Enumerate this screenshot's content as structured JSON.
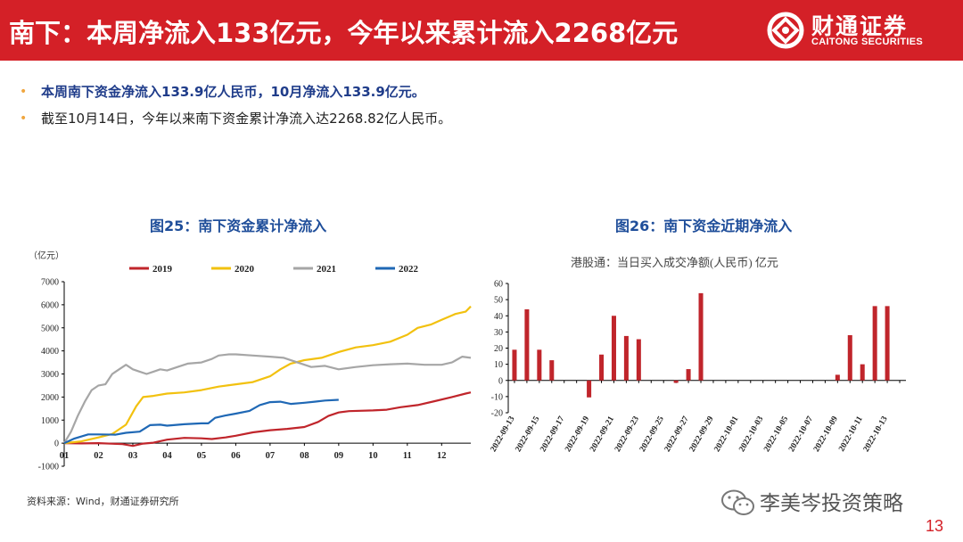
{
  "header": {
    "title": "南下：本周净流入133亿元，今年以来累计流入2268亿元",
    "logo_cn": "财通证券",
    "logo_en": "CAITONG SECURITIES"
  },
  "bullets": [
    {
      "text": "本周南下资金净流入133.9亿人民币，10月净流入133.9亿元。",
      "style": "strong"
    },
    {
      "text": "截至10月14日，今年以来南下资金累计净流入达2268.82亿人民币。",
      "style": "normal"
    }
  ],
  "source": "资料来源：Wind，财通证券研究所",
  "watermark": "李美岑投资策略",
  "page_number": "13",
  "colors": {
    "brand": "#d42027",
    "title_blue": "#1f4e9a",
    "bar_red": "#c0252b",
    "s2019": "#c0252b",
    "s2020": "#f2c10f",
    "s2021": "#a6a6a6",
    "s2022": "#1f68b5"
  },
  "chart_data": [
    {
      "type": "line",
      "title": "图25：南下资金累计净流入",
      "ylabel": "（亿元）",
      "ylim": [
        -1000,
        7000
      ],
      "yticks": [
        "7000",
        "6000",
        "5000",
        "4000",
        "3000",
        "2000",
        "1000",
        "0",
        "-1000"
      ],
      "xticks": [
        "01",
        "02",
        "03",
        "04",
        "05",
        "06",
        "07",
        "08",
        "09",
        "10",
        "11",
        "12"
      ],
      "series": [
        {
          "name": "2019",
          "color": "#c0252b",
          "points": [
            [
              1,
              0
            ],
            [
              1.5,
              -10
            ],
            [
              2,
              0
            ],
            [
              2.7,
              -40
            ],
            [
              3,
              -120
            ],
            [
              3.3,
              -20
            ],
            [
              3.6,
              20
            ],
            [
              4,
              150
            ],
            [
              4.5,
              230
            ],
            [
              5,
              210
            ],
            [
              5.3,
              180
            ],
            [
              5.7,
              250
            ],
            [
              6,
              320
            ],
            [
              6.5,
              470
            ],
            [
              7,
              560
            ],
            [
              7.5,
              620
            ],
            [
              8,
              700
            ],
            [
              8.4,
              920
            ],
            [
              8.7,
              1180
            ],
            [
              9,
              1330
            ],
            [
              9.3,
              1390
            ],
            [
              10,
              1420
            ],
            [
              10.4,
              1450
            ],
            [
              10.8,
              1560
            ],
            [
              11.3,
              1650
            ],
            [
              11.8,
              1820
            ],
            [
              12.3,
              2000
            ],
            [
              12.7,
              2150
            ],
            [
              12.85,
              2200
            ]
          ]
        },
        {
          "name": "2020",
          "color": "#f2c10f",
          "points": [
            [
              1,
              0
            ],
            [
              1.5,
              80
            ],
            [
              2,
              250
            ],
            [
              2.4,
              400
            ],
            [
              2.8,
              800
            ],
            [
              3.1,
              1600
            ],
            [
              3.3,
              2000
            ],
            [
              3.6,
              2050
            ],
            [
              4,
              2150
            ],
            [
              4.5,
              2200
            ],
            [
              5,
              2300
            ],
            [
              5.5,
              2450
            ],
            [
              6,
              2550
            ],
            [
              6.5,
              2650
            ],
            [
              7,
              2900
            ],
            [
              7.3,
              3200
            ],
            [
              7.6,
              3450
            ],
            [
              8,
              3600
            ],
            [
              8.5,
              3700
            ],
            [
              9,
              3950
            ],
            [
              9.5,
              4150
            ],
            [
              10,
              4250
            ],
            [
              10.5,
              4400
            ],
            [
              11,
              4700
            ],
            [
              11.3,
              5000
            ],
            [
              11.7,
              5150
            ],
            [
              12,
              5350
            ],
            [
              12.4,
              5600
            ],
            [
              12.7,
              5700
            ],
            [
              12.85,
              5930
            ]
          ]
        },
        {
          "name": "2021",
          "color": "#a6a6a6",
          "points": [
            [
              1,
              0
            ],
            [
              1.2,
              500
            ],
            [
              1.4,
              1200
            ],
            [
              1.6,
              1800
            ],
            [
              1.8,
              2300
            ],
            [
              2,
              2500
            ],
            [
              2.2,
              2550
            ],
            [
              2.4,
              3000
            ],
            [
              2.6,
              3200
            ],
            [
              2.8,
              3400
            ],
            [
              3,
              3200
            ],
            [
              3.2,
              3100
            ],
            [
              3.4,
              3000
            ],
            [
              3.6,
              3100
            ],
            [
              3.8,
              3200
            ],
            [
              4,
              3150
            ],
            [
              4.3,
              3300
            ],
            [
              4.6,
              3450
            ],
            [
              5,
              3500
            ],
            [
              5.3,
              3650
            ],
            [
              5.5,
              3800
            ],
            [
              5.8,
              3850
            ],
            [
              6,
              3850
            ],
            [
              6.5,
              3800
            ],
            [
              7,
              3750
            ],
            [
              7.4,
              3700
            ],
            [
              7.8,
              3500
            ],
            [
              8.2,
              3300
            ],
            [
              8.6,
              3350
            ],
            [
              9,
              3200
            ],
            [
              9.5,
              3300
            ],
            [
              10,
              3380
            ],
            [
              10.5,
              3420
            ],
            [
              11,
              3450
            ],
            [
              11.5,
              3400
            ],
            [
              12,
              3400
            ],
            [
              12.3,
              3500
            ],
            [
              12.6,
              3750
            ],
            [
              12.85,
              3700
            ]
          ]
        },
        {
          "name": "2022",
          "color": "#1f68b5",
          "points": [
            [
              1,
              0
            ],
            [
              1.3,
              200
            ],
            [
              1.7,
              380
            ],
            [
              2,
              380
            ],
            [
              2.5,
              370
            ],
            [
              2.8,
              450
            ],
            [
              3.2,
              500
            ],
            [
              3.5,
              780
            ],
            [
              3.8,
              800
            ],
            [
              4,
              760
            ],
            [
              4.5,
              820
            ],
            [
              5,
              860
            ],
            [
              5.2,
              860
            ],
            [
              5.4,
              1100
            ],
            [
              5.7,
              1200
            ],
            [
              6,
              1280
            ],
            [
              6.4,
              1400
            ],
            [
              6.7,
              1650
            ],
            [
              7,
              1780
            ],
            [
              7.3,
              1800
            ],
            [
              7.6,
              1700
            ],
            [
              8,
              1750
            ],
            [
              8.3,
              1800
            ],
            [
              8.6,
              1850
            ],
            [
              9,
              1880
            ]
          ]
        }
      ]
    },
    {
      "type": "bar",
      "title": "图26：南下资金近期净流入",
      "subtitle": "港股通：当日买入成交净额(人民币) 亿元",
      "ylim": [
        -20,
        60
      ],
      "yticks": [
        "60",
        "50",
        "40",
        "30",
        "20",
        "10",
        "0",
        "-10",
        "-20"
      ],
      "tick_labels": [
        "2022-09-13",
        "2022-09-15",
        "2022-09-17",
        "2022-09-19",
        "2022-09-21",
        "2022-09-23",
        "2022-09-25",
        "2022-09-27",
        "2022-09-29",
        "2022-10-01",
        "2022-10-03",
        "2022-10-05",
        "2022-10-07",
        "2022-10-09",
        "2022-10-11",
        "2022-10-13"
      ],
      "categories": [
        "09-13",
        "09-14",
        "09-15",
        "09-16",
        "09-17",
        "09-18",
        "09-19",
        "09-20",
        "09-21",
        "09-22",
        "09-23",
        "09-24",
        "09-25",
        "09-26",
        "09-27",
        "09-28",
        "09-29",
        "09-30",
        "10-01",
        "10-02",
        "10-03",
        "10-04",
        "10-05",
        "10-06",
        "10-07",
        "10-08",
        "10-09",
        "10-10",
        "10-11",
        "10-12",
        "10-13",
        "10-14"
      ],
      "values": [
        19,
        44,
        19,
        12.5,
        0,
        0,
        -10.5,
        16,
        40,
        27.5,
        25.5,
        0,
        0,
        -1.5,
        7,
        54,
        0,
        0,
        0,
        0,
        0,
        0,
        0,
        0,
        0,
        0,
        3.5,
        28,
        10,
        46,
        46,
        0
      ]
    }
  ]
}
